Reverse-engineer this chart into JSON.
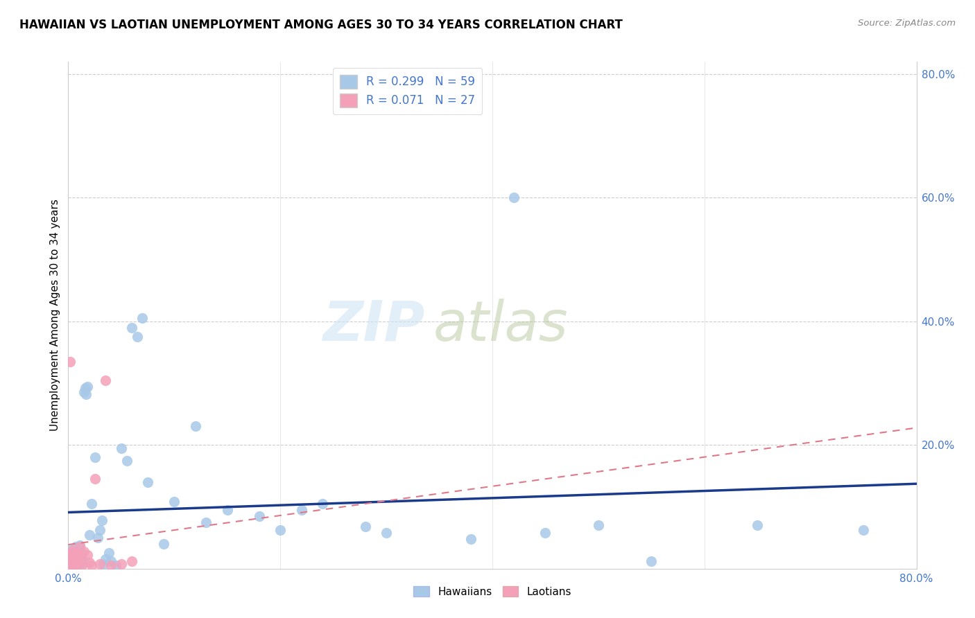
{
  "title": "HAWAIIAN VS LAOTIAN UNEMPLOYMENT AMONG AGES 30 TO 34 YEARS CORRELATION CHART",
  "source": "Source: ZipAtlas.com",
  "ylabel": "Unemployment Among Ages 30 to 34 years",
  "legend_hawaiian": "R = 0.299   N = 59",
  "legend_laotian": "R = 0.071   N = 27",
  "legend_label_hawaiian": "Hawaiians",
  "legend_label_laotian": "Laotians",
  "hawaiian_color": "#a8c8e8",
  "laotian_color": "#f4a0b8",
  "hawaiian_line_color": "#1a3a8c",
  "laotian_line_color": "#e07888",
  "watermark_zip": "ZIP",
  "watermark_atlas": "atlas",
  "hawaiian_x": [
    0.002,
    0.003,
    0.003,
    0.004,
    0.004,
    0.005,
    0.005,
    0.006,
    0.006,
    0.007,
    0.007,
    0.008,
    0.008,
    0.009,
    0.01,
    0.01,
    0.011,
    0.012,
    0.013,
    0.014,
    0.015,
    0.016,
    0.017,
    0.018,
    0.02,
    0.022,
    0.025,
    0.028,
    0.03,
    0.032,
    0.033,
    0.035,
    0.038,
    0.04,
    0.045,
    0.05,
    0.055,
    0.06,
    0.065,
    0.07,
    0.075,
    0.09,
    0.1,
    0.12,
    0.13,
    0.15,
    0.18,
    0.2,
    0.22,
    0.24,
    0.28,
    0.3,
    0.38,
    0.42,
    0.45,
    0.5,
    0.55,
    0.65,
    0.75
  ],
  "hawaiian_y": [
    0.03,
    0.005,
    0.02,
    0.008,
    0.015,
    0.012,
    0.025,
    0.018,
    0.03,
    0.022,
    0.035,
    0.015,
    0.028,
    0.01,
    0.005,
    0.02,
    0.038,
    0.025,
    0.008,
    0.012,
    0.285,
    0.292,
    0.282,
    0.295,
    0.055,
    0.105,
    0.18,
    0.05,
    0.062,
    0.078,
    0.008,
    0.015,
    0.025,
    0.012,
    0.005,
    0.195,
    0.175,
    0.39,
    0.375,
    0.405,
    0.14,
    0.04,
    0.108,
    0.23,
    0.075,
    0.095,
    0.085,
    0.062,
    0.095,
    0.105,
    0.068,
    0.058,
    0.048,
    0.6,
    0.058,
    0.07,
    0.012,
    0.07,
    0.062
  ],
  "laotian_x": [
    0.001,
    0.002,
    0.003,
    0.003,
    0.004,
    0.004,
    0.005,
    0.005,
    0.006,
    0.006,
    0.007,
    0.008,
    0.009,
    0.01,
    0.011,
    0.012,
    0.013,
    0.015,
    0.018,
    0.02,
    0.022,
    0.025,
    0.03,
    0.035,
    0.04,
    0.05,
    0.06
  ],
  "laotian_y": [
    0.008,
    0.335,
    0.015,
    0.025,
    0.01,
    0.03,
    0.005,
    0.018,
    0.012,
    0.025,
    0.008,
    0.022,
    0.015,
    0.01,
    0.035,
    0.018,
    0.005,
    0.028,
    0.022,
    0.01,
    0.005,
    0.145,
    0.008,
    0.305,
    0.005,
    0.008,
    0.012
  ],
  "xlim": [
    0.0,
    0.8
  ],
  "ylim": [
    0.0,
    0.82
  ],
  "xtick_positions": [
    0.0,
    0.8
  ],
  "xtick_labels": [
    "0.0%",
    "80.0%"
  ],
  "ytick_positions": [
    0.2,
    0.4,
    0.6,
    0.8
  ],
  "ytick_labels": [
    "20.0%",
    "40.0%",
    "60.0%",
    "80.0%"
  ],
  "grid_yticks": [
    0.2,
    0.4,
    0.6,
    0.8
  ],
  "tick_color": "#4477cc",
  "scatter_size": 120
}
